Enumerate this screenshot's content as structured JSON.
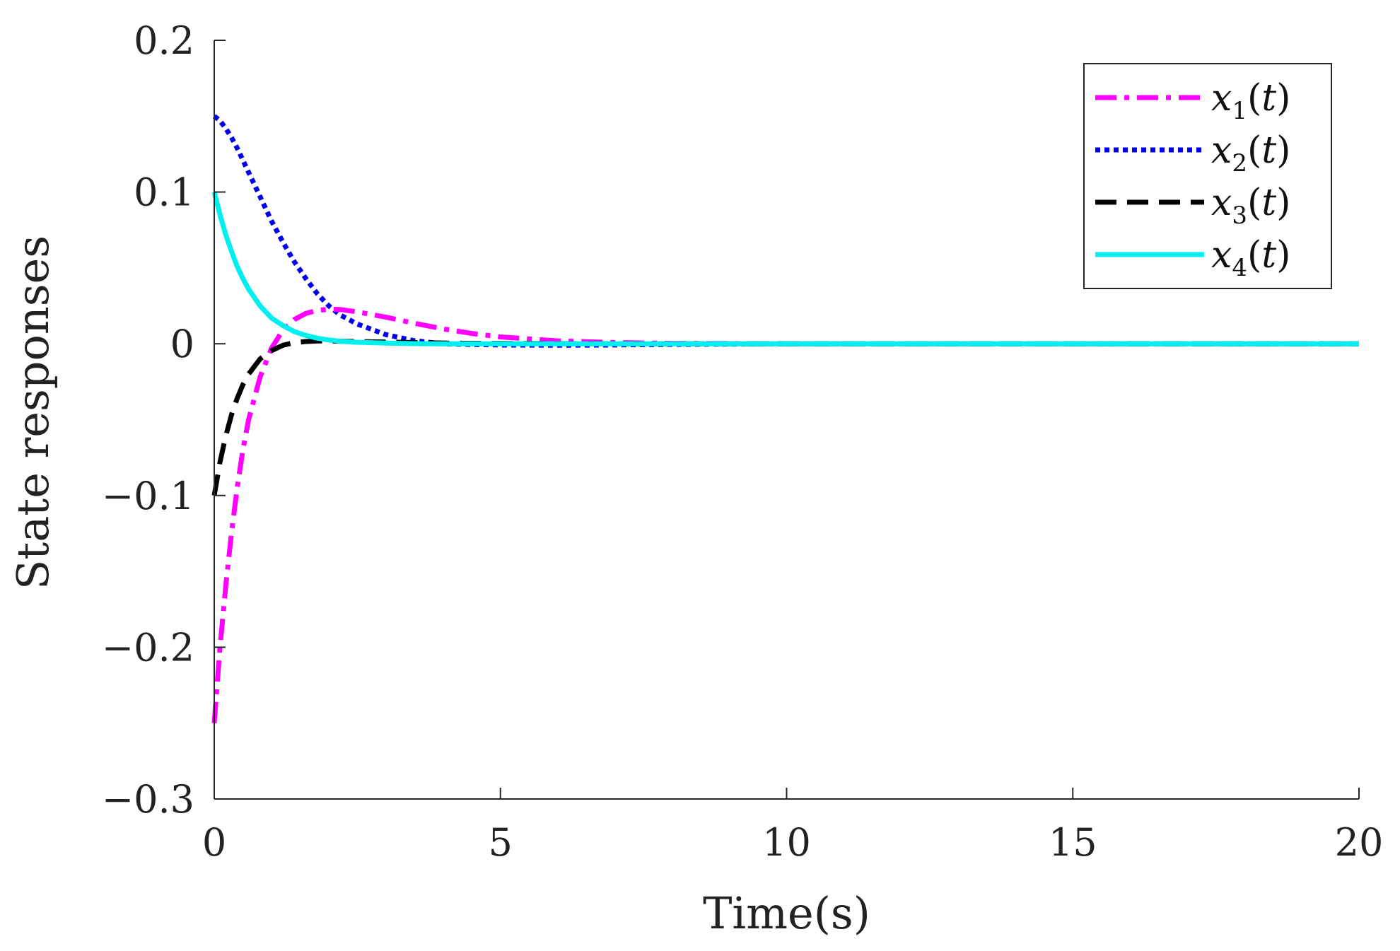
{
  "chart_data": {
    "type": "line",
    "title": "",
    "xlabel": "Time(s)",
    "ylabel": "State responses",
    "xlim": [
      0,
      20
    ],
    "ylim": [
      -0.3,
      0.2
    ],
    "xticks": [
      0,
      5,
      10,
      15,
      20
    ],
    "yticks": [
      -0.3,
      -0.2,
      -0.1,
      0,
      0.1,
      0.2
    ],
    "xtick_labels": [
      "0",
      "5",
      "10",
      "15",
      "20"
    ],
    "ytick_labels": [
      "−0.3",
      "−0.2",
      "−0.1",
      "0",
      "0.1",
      "0.2"
    ],
    "grid": false,
    "legend_position": "top-right",
    "x": [
      0,
      0.1,
      0.2,
      0.3,
      0.4,
      0.5,
      0.6,
      0.8,
      1.0,
      1.2,
      1.4,
      1.6,
      1.8,
      2.0,
      2.2,
      2.5,
      3.0,
      3.5,
      4.0,
      4.5,
      5.0,
      6.0,
      7.0,
      8.0,
      10.0,
      12.0,
      15.0,
      20.0
    ],
    "series": [
      {
        "name": "x1(t)",
        "var": "x",
        "sub": "1",
        "color": "#ff00ff",
        "style": "dashdot",
        "values": [
          -0.25,
          -0.2,
          -0.16,
          -0.125,
          -0.095,
          -0.07,
          -0.05,
          -0.022,
          -0.003,
          0.009,
          0.016,
          0.02,
          0.022,
          0.0228,
          0.0226,
          0.021,
          0.0175,
          0.0135,
          0.0098,
          0.0068,
          0.0045,
          0.0019,
          0.0008,
          0.0003,
          0.0,
          0.0,
          0.0,
          0.0
        ]
      },
      {
        "name": "x2(t)",
        "var": "x",
        "sub": "2",
        "color": "#0000ee",
        "style": "dotted",
        "values": [
          0.15,
          0.147,
          0.142,
          0.136,
          0.129,
          0.121,
          0.113,
          0.097,
          0.081,
          0.067,
          0.054,
          0.043,
          0.033,
          0.025,
          0.019,
          0.013,
          0.006,
          0.002,
          0.0,
          -0.0005,
          -0.0008,
          -0.001,
          -0.0008,
          -0.0004,
          0.0,
          0.0,
          0.0,
          0.0
        ]
      },
      {
        "name": "x3(t)",
        "var": "x",
        "sub": "3",
        "color": "#000000",
        "style": "dashed",
        "values": [
          -0.1,
          -0.078,
          -0.061,
          -0.047,
          -0.036,
          -0.027,
          -0.02,
          -0.01,
          -0.0045,
          -0.001,
          0.0008,
          0.0015,
          0.0018,
          0.0018,
          0.0017,
          0.0015,
          0.0011,
          0.0008,
          0.0005,
          0.0003,
          0.0002,
          0.0001,
          0.0,
          0.0,
          0.0,
          0.0,
          0.0,
          0.0
        ]
      },
      {
        "name": "x4(t)",
        "var": "x",
        "sub": "4",
        "color": "#00f0f0",
        "style": "solid",
        "values": [
          0.1,
          0.085,
          0.072,
          0.061,
          0.051,
          0.043,
          0.036,
          0.025,
          0.017,
          0.012,
          0.008,
          0.0055,
          0.0037,
          0.0025,
          0.0017,
          0.001,
          0.0004,
          0.0001,
          0.0,
          0.0,
          0.0,
          0.0,
          0.0,
          0.0,
          0.0,
          0.0,
          0.0,
          0.0
        ]
      }
    ]
  }
}
